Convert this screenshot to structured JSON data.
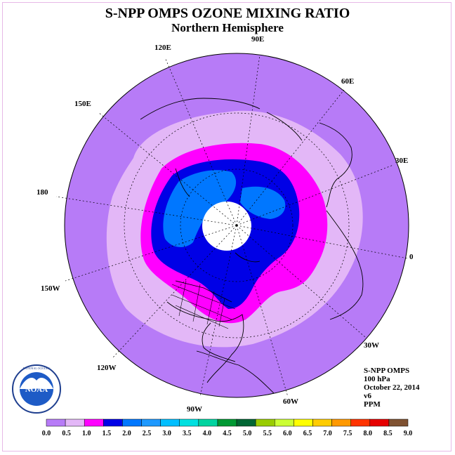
{
  "title": "S-NPP OMPS OZONE MIXING RATIO",
  "subtitle": "Northern Hemisphere",
  "longitude_labels": [
    "90E",
    "60E",
    "30E",
    "0",
    "30W",
    "60W",
    "90W",
    "120W",
    "150W",
    "180",
    "150E",
    "120E"
  ],
  "info": {
    "instrument": "S-NPP OMPS",
    "level": "100 hPa",
    "date": "October 22, 2014",
    "version": "v6",
    "units": "PPM"
  },
  "logo_text": "NOAA",
  "logo_ring_text": "NATIONAL OCEANIC AND ATMOSPHERIC ADMINISTRATION · U.S. DEPARTMENT OF COMMERCE",
  "colorbar": {
    "ticks": [
      "0.0",
      "0.5",
      "1.0",
      "1.5",
      "2.0",
      "2.5",
      "3.0",
      "3.5",
      "4.0",
      "4.5",
      "5.0",
      "5.5",
      "6.0",
      "6.5",
      "7.0",
      "7.5",
      "8.0",
      "8.5",
      "9.0"
    ],
    "colors": [
      "#b77bf7",
      "#e3b7f7",
      "#ff00ff",
      "#0000e6",
      "#0077ff",
      "#1e99ff",
      "#00bfff",
      "#00e0e0",
      "#00d4a0",
      "#009933",
      "#006633",
      "#99cc00",
      "#ccff33",
      "#ffff00",
      "#ffcc00",
      "#ff9900",
      "#ff3300",
      "#e60000",
      "#7f5232"
    ]
  },
  "regions": [
    {
      "name": "outer",
      "color": "#b77bf7"
    },
    {
      "name": "0.5-1.0",
      "color": "#e3b7f7"
    },
    {
      "name": "1.0-1.5",
      "color": "#ff00ff"
    },
    {
      "name": "1.5-2.0",
      "color": "#0000e6"
    },
    {
      "name": "2.0-2.5",
      "color": "#0077ff"
    },
    {
      "name": "polar-gap",
      "color": "#ffffff"
    }
  ]
}
